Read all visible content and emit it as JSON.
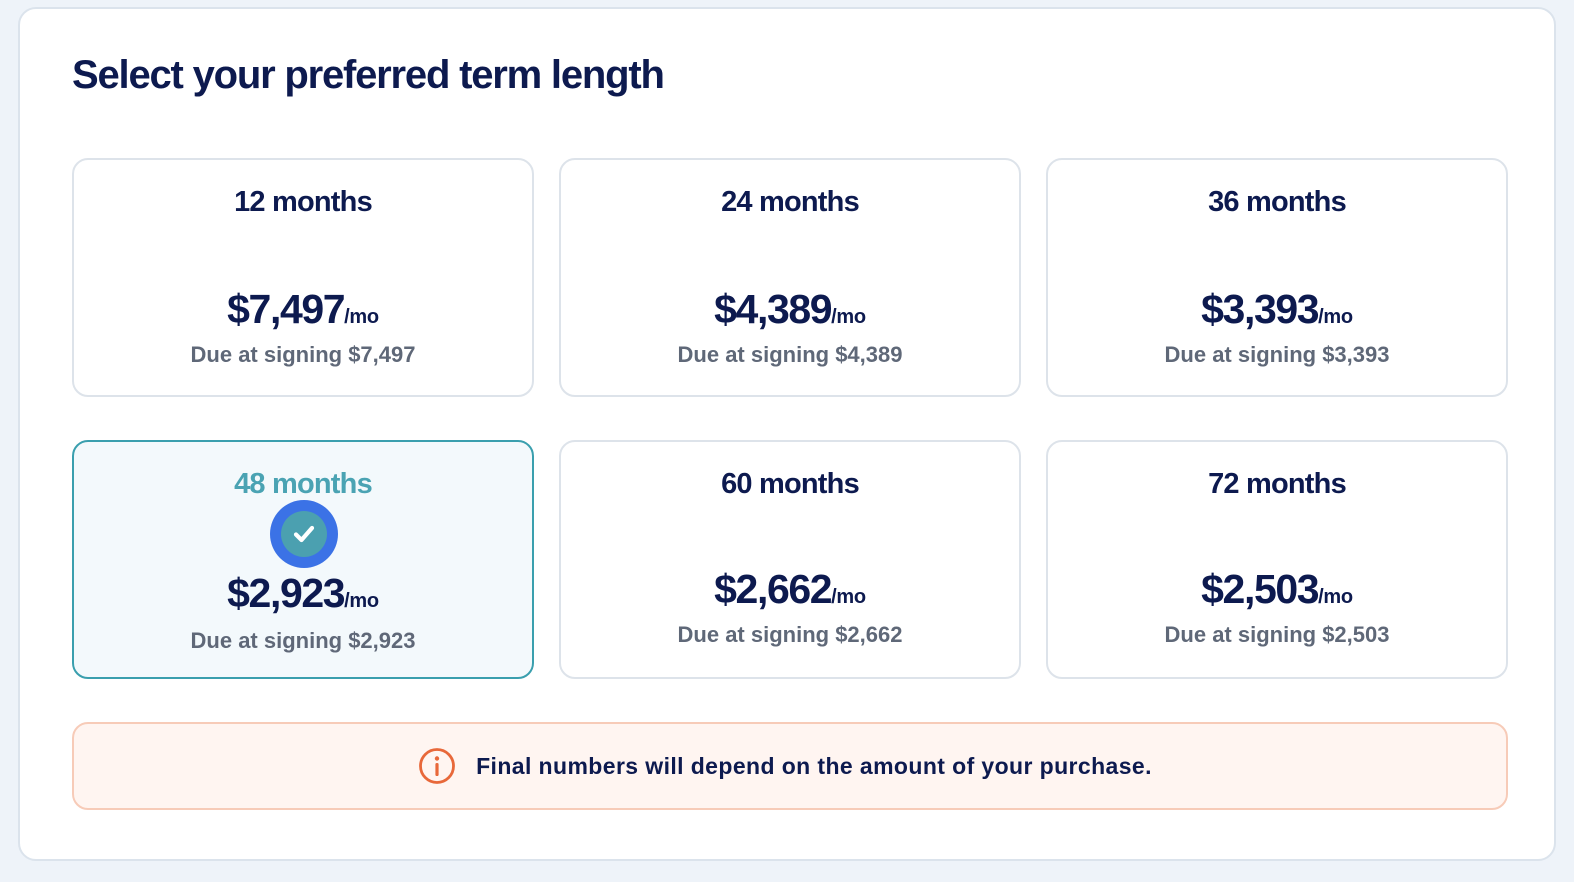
{
  "title": "Select your preferred term length",
  "options": [
    {
      "term": "12 months",
      "price": "$7,497",
      "per": "/mo",
      "due": "Due at signing $7,497",
      "selected": false
    },
    {
      "term": "24 months",
      "price": "$4,389",
      "per": "/mo",
      "due": "Due at signing $4,389",
      "selected": false
    },
    {
      "term": "36 months",
      "price": "$3,393",
      "per": "/mo",
      "due": "Due at signing $3,393",
      "selected": false
    },
    {
      "term": "48 months",
      "price": "$2,923",
      "per": "/mo",
      "due": "Due at signing $2,923",
      "selected": true
    },
    {
      "term": "60 months",
      "price": "$2,662",
      "per": "/mo",
      "due": "Due at signing $2,662",
      "selected": false
    },
    {
      "term": "72 months",
      "price": "$2,503",
      "per": "/mo",
      "due": "Due at signing $2,503",
      "selected": false
    }
  ],
  "notice": {
    "icon": "info-icon",
    "text": "Final numbers will depend on the amount of your purchase."
  },
  "colors": {
    "heading": "#0d1a4f",
    "selected_border": "#3a9fae",
    "selected_term": "#4aa3b3",
    "check_outer": "#3b72e6",
    "notice_accent": "#e8683a"
  }
}
